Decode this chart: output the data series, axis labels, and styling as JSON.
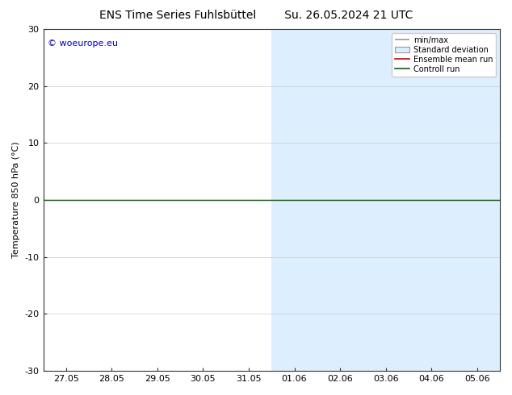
{
  "title_left": "ENS Time Series Fuhlsbüttel",
  "title_right": "Su. 26.05.2024 21 UTC",
  "ylabel": "Temperature 850 hPa (°C)",
  "ylim": [
    -30,
    30
  ],
  "yticks": [
    -30,
    -20,
    -10,
    0,
    10,
    20,
    30
  ],
  "x_labels": [
    "27.05",
    "28.05",
    "29.05",
    "30.05",
    "31.05",
    "01.06",
    "02.06",
    "03.06",
    "04.06",
    "05.06"
  ],
  "x_values": [
    0,
    1,
    2,
    3,
    4,
    5,
    6,
    7,
    8,
    9
  ],
  "x_min": -0.5,
  "x_max": 9.5,
  "shaded_regions": [
    {
      "x_start": 4.5,
      "x_end": 7.5
    },
    {
      "x_start": 7.5,
      "x_end": 9.5
    }
  ],
  "shaded_color": "#ddeeff",
  "line_y": 0,
  "line_color_green": "#006600",
  "line_color_red": "#cc0000",
  "watermark_text": "© woeurope.eu",
  "watermark_color": "#0000cc",
  "background_color": "#ffffff",
  "legend_minmax_color": "#999999",
  "legend_std_color": "#ddeeff",
  "title_fontsize": 10,
  "axis_label_fontsize": 8,
  "tick_fontsize": 8,
  "watermark_fontsize": 8
}
